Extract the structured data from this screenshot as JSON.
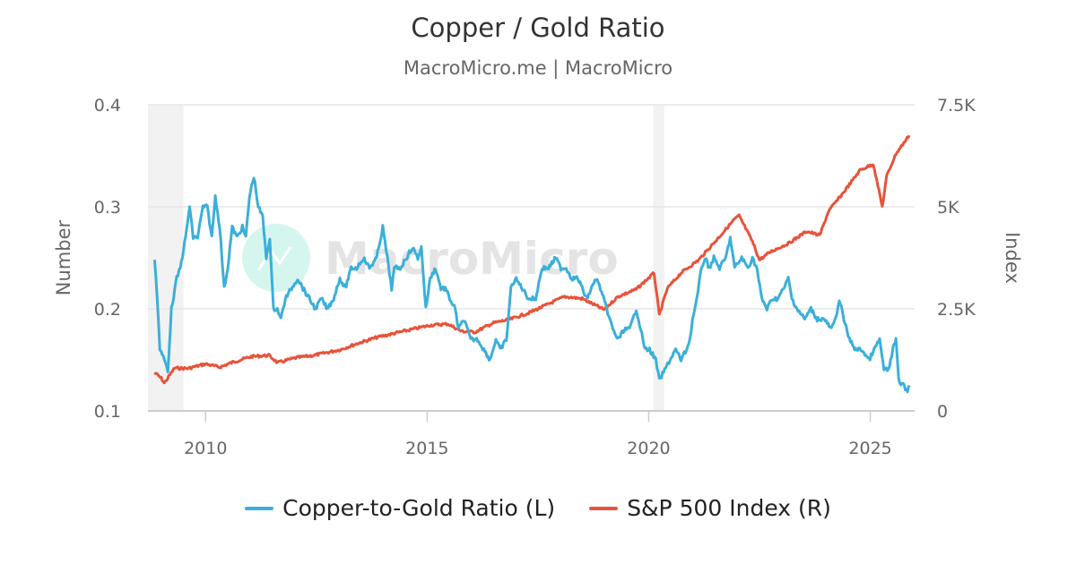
{
  "watermark": "MacroMicro",
  "colors": {
    "copper_gold": "#3bafda",
    "sp500": "#e8533a",
    "recession_band": "#f2f2f2",
    "grid": "#e6e6e6"
  },
  "chart_data": {
    "type": "line",
    "title": "Copper / Gold Ratio",
    "subtitle": "MacroMicro.me | MacroMicro",
    "xaxis": {
      "ticks": [
        2010,
        2015,
        2020,
        2025
      ],
      "tick_labels": [
        "2010",
        "2015",
        "2020",
        "2025"
      ],
      "range": [
        2008.7,
        2026.0
      ]
    },
    "yaxis_left": {
      "label": "Number",
      "range": [
        0.1,
        0.4
      ],
      "ticks": [
        0.1,
        0.2,
        0.3,
        0.4
      ],
      "tick_labels": [
        "0.1",
        "0.2",
        "0.3",
        "0.4"
      ]
    },
    "yaxis_right": {
      "label": "Index",
      "range": [
        0,
        7500
      ],
      "ticks": [
        0,
        2500,
        5000,
        7500
      ],
      "tick_labels": [
        "0",
        "2.5K",
        "5K",
        "7.5K"
      ]
    },
    "grid": true,
    "legend_position": "bottom",
    "recession_bands": [
      [
        2008.7,
        2009.5
      ],
      [
        2020.1,
        2020.35
      ]
    ],
    "series": [
      {
        "name": "Copper-to-Gold Ratio (L)",
        "axis": "left",
        "x": [
          2008.85,
          2008.91,
          2008.97,
          2009.07,
          2009.15,
          2009.23,
          2009.35,
          2009.43,
          2009.55,
          2009.64,
          2009.72,
          2009.82,
          2009.94,
          2010.04,
          2010.14,
          2010.22,
          2010.32,
          2010.42,
          2010.5,
          2010.6,
          2010.71,
          2010.83,
          2010.91,
          2010.99,
          2011.09,
          2011.19,
          2011.29,
          2011.37,
          2011.45,
          2011.53,
          2011.62,
          2011.7,
          2011.8,
          2011.94,
          2012.08,
          2012.2,
          2012.34,
          2012.48,
          2012.61,
          2012.75,
          2012.89,
          2013.03,
          2013.15,
          2013.29,
          2013.41,
          2013.56,
          2013.7,
          2013.86,
          2014.0,
          2014.1,
          2014.2,
          2014.26,
          2014.4,
          2014.53,
          2014.67,
          2014.79,
          2014.87,
          2014.97,
          2015.07,
          2015.19,
          2015.31,
          2015.41,
          2015.51,
          2015.63,
          2015.71,
          2015.83,
          2015.98,
          2016.14,
          2016.28,
          2016.42,
          2016.55,
          2016.65,
          2016.79,
          2016.89,
          2016.99,
          2017.15,
          2017.29,
          2017.45,
          2017.59,
          2017.74,
          2017.9,
          2018.02,
          2018.14,
          2018.26,
          2018.4,
          2018.5,
          2018.6,
          2018.71,
          2018.81,
          2018.91,
          2019.05,
          2019.19,
          2019.31,
          2019.45,
          2019.57,
          2019.72,
          2019.82,
          2019.92,
          2020.02,
          2020.16,
          2020.24,
          2020.36,
          2020.48,
          2020.61,
          2020.73,
          2020.85,
          2020.93,
          2020.99,
          2021.09,
          2021.19,
          2021.27,
          2021.37,
          2021.47,
          2021.6,
          2021.74,
          2021.84,
          2021.94,
          2022.1,
          2022.24,
          2022.34,
          2022.44,
          2022.55,
          2022.67,
          2022.79,
          2022.91,
          2023.05,
          2023.15,
          2023.23,
          2023.35,
          2023.52,
          2023.66,
          2023.8,
          2023.96,
          2024.12,
          2024.22,
          2024.3,
          2024.4,
          2024.53,
          2024.67,
          2024.81,
          2024.97,
          2025.09,
          2025.21,
          2025.31,
          2025.41,
          2025.51,
          2025.58,
          2025.64,
          2025.74,
          2025.84,
          2025.88
        ],
        "y": [
          0.25,
          0.21,
          0.16,
          0.15,
          0.14,
          0.2,
          0.23,
          0.24,
          0.27,
          0.3,
          0.27,
          0.27,
          0.3,
          0.3,
          0.27,
          0.31,
          0.28,
          0.22,
          0.24,
          0.28,
          0.27,
          0.28,
          0.27,
          0.31,
          0.33,
          0.3,
          0.29,
          0.25,
          0.27,
          0.2,
          0.2,
          0.19,
          0.21,
          0.22,
          0.23,
          0.22,
          0.21,
          0.2,
          0.21,
          0.2,
          0.21,
          0.23,
          0.22,
          0.24,
          0.24,
          0.25,
          0.24,
          0.25,
          0.28,
          0.25,
          0.22,
          0.24,
          0.24,
          0.25,
          0.26,
          0.25,
          0.26,
          0.2,
          0.23,
          0.24,
          0.22,
          0.22,
          0.21,
          0.2,
          0.18,
          0.19,
          0.17,
          0.17,
          0.16,
          0.15,
          0.17,
          0.16,
          0.17,
          0.22,
          0.23,
          0.22,
          0.21,
          0.21,
          0.24,
          0.24,
          0.25,
          0.24,
          0.24,
          0.23,
          0.23,
          0.22,
          0.21,
          0.22,
          0.23,
          0.22,
          0.2,
          0.18,
          0.17,
          0.18,
          0.18,
          0.2,
          0.18,
          0.16,
          0.16,
          0.15,
          0.13,
          0.14,
          0.15,
          0.16,
          0.15,
          0.16,
          0.17,
          0.19,
          0.21,
          0.24,
          0.25,
          0.24,
          0.25,
          0.24,
          0.25,
          0.27,
          0.24,
          0.25,
          0.24,
          0.25,
          0.24,
          0.21,
          0.2,
          0.21,
          0.21,
          0.22,
          0.23,
          0.21,
          0.2,
          0.19,
          0.2,
          0.19,
          0.19,
          0.18,
          0.19,
          0.21,
          0.19,
          0.17,
          0.16,
          0.16,
          0.15,
          0.16,
          0.17,
          0.14,
          0.14,
          0.16,
          0.17,
          0.13,
          0.125,
          0.12,
          0.125
        ]
      },
      {
        "name": "S&P 500 Index (R)",
        "axis": "right",
        "x": [
          2008.85,
          2009.0,
          2009.07,
          2009.3,
          2009.6,
          2010.0,
          2010.32,
          2010.63,
          2011.03,
          2011.43,
          2011.63,
          2012.03,
          2012.44,
          2013.04,
          2013.45,
          2013.86,
          2014.26,
          2014.67,
          2015.07,
          2015.47,
          2015.78,
          2016.08,
          2016.48,
          2016.89,
          2017.29,
          2017.7,
          2018.1,
          2018.5,
          2018.99,
          2019.31,
          2019.72,
          2020.12,
          2020.24,
          2020.42,
          2020.73,
          2021.13,
          2021.54,
          2021.94,
          2022.04,
          2022.34,
          2022.5,
          2022.75,
          2023.15,
          2023.56,
          2023.86,
          2024.06,
          2024.36,
          2024.77,
          2025.07,
          2025.27,
          2025.37,
          2025.58,
          2025.88
        ],
        "y": [
          940,
          800,
          680,
          1050,
          1040,
          1150,
          1070,
          1200,
          1330,
          1360,
          1180,
          1300,
          1360,
          1500,
          1660,
          1800,
          1900,
          2000,
          2100,
          2130,
          1950,
          1930,
          2150,
          2250,
          2400,
          2600,
          2800,
          2750,
          2480,
          2800,
          2980,
          3380,
          2350,
          3000,
          3380,
          3700,
          4200,
          4700,
          4780,
          4150,
          3700,
          3900,
          4100,
          4400,
          4300,
          4900,
          5300,
          5900,
          6050,
          5000,
          5750,
          6300,
          6750
        ]
      }
    ]
  }
}
